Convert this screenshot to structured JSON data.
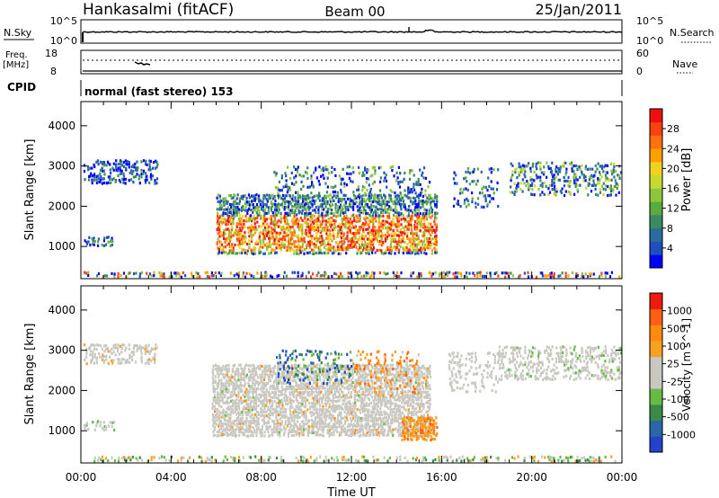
{
  "header": {
    "station": "Hankasalmi (fitACF)",
    "beam": "Beam 00",
    "date": "25/Jan/2011"
  },
  "strip_labels": {
    "nsky": "N.Sky",
    "nsky_ticks": [
      "10^5",
      "10^0"
    ],
    "nsearch": "N.Search",
    "nsearch_ticks": [
      "10^5",
      "10^0"
    ],
    "freq_line1": "Freq.",
    "freq_line2": "[MHz]",
    "freq_ticks": [
      "18",
      "8"
    ],
    "nave": "Nave",
    "nave_ticks": [
      "60",
      "0"
    ],
    "cpid": "CPID",
    "cpid_text": "normal (fast stereo) 153"
  },
  "chart_data": [
    {
      "type": "heatmap",
      "quantity": "Power",
      "ylabel": "Slant Range [km]",
      "colorbar_label": "Power [dB]",
      "colorbar_ticks": [
        "28",
        "24",
        "20",
        "16",
        "12",
        "8",
        "4"
      ],
      "colors": [
        "#0000ff",
        "#1e4fbf",
        "#2a6aa0",
        "#3a8a60",
        "#5aaa40",
        "#8ac83a",
        "#c8d830",
        "#f0d020",
        "#ffa000",
        "#ff7010",
        "#ff4010",
        "#ee1010"
      ],
      "ylim": [
        200,
        4600
      ],
      "yticks": [
        1000,
        2000,
        3000,
        4000
      ],
      "xlim": [
        0,
        24
      ],
      "xticks": [
        "00:00",
        "04:00",
        "08:00",
        "12:00",
        "16:00",
        "20:00",
        "00:00"
      ],
      "xlabel": "Time UT"
    },
    {
      "type": "heatmap",
      "quantity": "Velocity",
      "ylabel": "Slant Range [km]",
      "colorbar_label": "Velocity [m s^-1]",
      "colorbar_ticks": [
        "1000",
        "500",
        "100",
        "25",
        "-25",
        "-100",
        "-500",
        "-1000"
      ],
      "colors": [
        "#2244cc",
        "#2a66aa",
        "#3a8a4a",
        "#66bb44",
        "#c8c8c0",
        "#c8c8c0",
        "#f8a020",
        "#ff8a10",
        "#ff6010",
        "#ee1a10"
      ],
      "ylim": [
        200,
        4600
      ],
      "yticks": [
        1000,
        2000,
        3000,
        4000
      ],
      "xlim": [
        0,
        24
      ],
      "xticks": [
        "00:00",
        "04:00",
        "08:00",
        "12:00",
        "16:00",
        "20:00",
        "00:00"
      ],
      "xlabel": "Time UT"
    }
  ]
}
